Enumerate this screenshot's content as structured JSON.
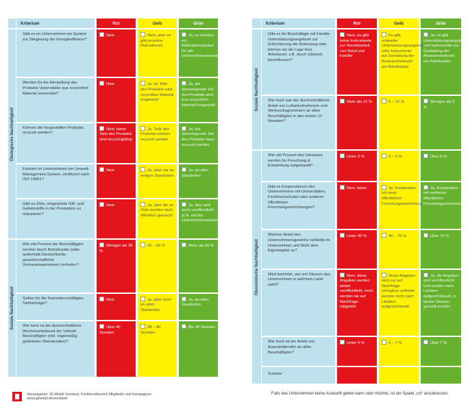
{
  "headers": {
    "kriterium": "Kriterium",
    "rot": "Rot",
    "gelb": "Gelb",
    "gruen": "Grün"
  },
  "left": {
    "sections": [
      {
        "label": "Ökologische Nachhaltigkeit",
        "rows": [
          {
            "kriterium": "Gibt es im Unternehmen ein System zur Steigerung der Energieeffizienz?",
            "rot": "Nein",
            "gelb": "Nein, aber es gibt einzelne Maßnahmen",
            "gruen": "Ja, es existiert ein Maßnahmenpaket für alle Unternehmensbereiche"
          },
          {
            "kriterium": "Werden für die Herstellung des Produkts Vorprodukte aus recyceltem Material verwendet?",
            "rot": "Nein",
            "gelb": "Ja, für Teile des Produkts wird recyceltes Material eingesetzt",
            "gruen": "Ja, der überwiegende Teil des Produkts wird aus recyceltem Material hergestellt"
          },
          {
            "kriterium": "Können die hergestellten Produkte recycelt werden?",
            "rot": "Nein, keine Teile des Produkts sind recyclingfähig",
            "gelb": "Ja, Teile des Produkts können recycelt werden",
            "gruen": "Ja, der überwiegende Teil des Produkts kann recycelt werden"
          },
          {
            "kriterium": "Existiert im Unternehmen ein Umwelt-Management-System, zertifiziert nach ISO 14001?",
            "rot": "Nein",
            "gelb": "Ja, aber nur an einigen Standorten",
            "gruen": "Ja, an allen Standorten"
          },
          {
            "kriterium": "Gibt es Ziele, eingesetzte Gift- und Gefahrstoffe in der Produktion zu reduzieren?",
            "rot": "Nein",
            "gelb": "Ja, aber die se Ziele werden nicht öffentlich gemacht",
            "gruen": "Ja, dies wird auch veröffentlicht (z.B. auf der Unternehmenswebsite)"
          }
        ]
      },
      {
        "label": "Soziale Nachhaltigkeit",
        "rows": [
          {
            "kriterium": "Wie viel Prozent der Beschäftigten werden durch Betriebsräte (oder außerhalb Deutschlands: gewerkschaftliche Vertrauenspersonen) vertreten?",
            "rot": "Weniger als 30 %",
            "gelb": "30 – 60 %",
            "gruen": "Mehr als 60 %"
          },
          {
            "kriterium": "Gelten für die Stammbeschäftigten Tarifverträge?",
            "rot": "Nein",
            "gelb": "Ja, aber nicht an allen Standorten",
            "gruen": "Ja, an allen Standorten"
          },
          {
            "kriterium": "Wie hoch ist die durchschnittliche Wochenarbeitszeit der Vollzeit-Beschäftigten (inkl. regelmäßig geleisteter Überstunden)?",
            "rot": "Über 40 Stunden",
            "gelb": "38 – 40 Stunden",
            "gruen": "Bis 38 Stunden"
          }
        ]
      }
    ]
  },
  "right": {
    "sections": [
      {
        "label": "Soziale Nachhaltigkeit",
        "rows": [
          {
            "kriterium": "Gibt es für Beschäftigte mit Familie Unterstützungsangebote zur Erleichterung der Betreuung oder können sie die Lage ihrer Arbeitszeit, z.B. durch Gleitzeit, beeinflussen?",
            "rot": "Nein, es gibt keine Instrumente zur Vereinbarkeit von Beruf und Familie",
            "gelb": "Es gibt entweder Unterstützungsangebote oder Instrumente zur Gestaltung der Anwesenheitszeit am Arbeitsplatz",
            "gruen": "Ja, es gibt Unterstützungsangebote und Instrumente zur Gestaltung der Anwesenheitszeit am Arbeitsplatz"
          },
          {
            "kriterium": "Wie hoch war der durchschnittliche Anteil von Leiharbeitnehmern und Werkvertragnehmern an allen Beschäftigten in den letzten 12 Monaten?",
            "rot": "Mehr als 15 %",
            "gelb": "5 – 15 %",
            "gruen": "Weniger als 5 %"
          }
        ]
      },
      {
        "label": "Ökonomische Nachhaltigkeit",
        "rows": [
          {
            "kriterium": "Wie viel Prozent des Umsatzes werden für Forschung & Entwicklung aufgewandt?",
            "rot": "Unter 3 %",
            "gelb": "3 – 5 %",
            "gruen": "Über 5 %"
          },
          {
            "kriterium": "Gibt es Kooperationen des Unternehmens mit Universitäten, Fachhochschulen oder anderen öffentlichen Forschungseinrichtungen?",
            "rot": "Nein, keine",
            "gelb": "Ja, Kooperation mit einer öffentlichen Forschungseinrichtung",
            "gruen": "Ja, Kooperation mit mehreren öffentlichen Forschungseinrichtungen"
          },
          {
            "kriterium": "Welcher Anteil des Unternehmensgewinns verbleibt im Unternehmen und fließt dem Eigenkapital zu?",
            "rot": "Unter 40 %",
            "gelb": "40 – 75 %",
            "gruen": "Über 75 %"
          },
          {
            "kriterium": "Wird berichtet, wie viel Steuern das Unternehmen in welchem Land zahlt?",
            "rot": "Nein, diese Angaben werden weder veröffentlicht, noch werden sie auf Nachfrage mitgeteilt",
            "gelb": "Diese Angaben sind nur auf Nachfrage verfügbar und/oder werden nicht nach Ländern aufgeschlüsselt",
            "gruen": "Ja, die Angaben sind veröffentlicht und werden nach Ländern aufgeschlüsselt, in denen Steuern gezahlt wurden"
          },
          {
            "kriterium": "Wie hoch ist der Anteil von Auszubildenden an allen Beschäftigten?",
            "rot": "Unter 4 %",
            "gelb": "4 – 7 %",
            "gruen": "Über 7 %"
          }
        ]
      }
    ],
    "summe": "Summe:"
  },
  "footer": {
    "publisher": "Herausgeber: IG Metall Vorstand, Funktionsbereich Mitglieder und Kampagnen",
    "url": "www.igmetall.de/vorstand",
    "note": "Falls das Unternehmen keine Auskunft geben kann oder möchte, ist die Spalte „rot“ anzukreuzen."
  }
}
